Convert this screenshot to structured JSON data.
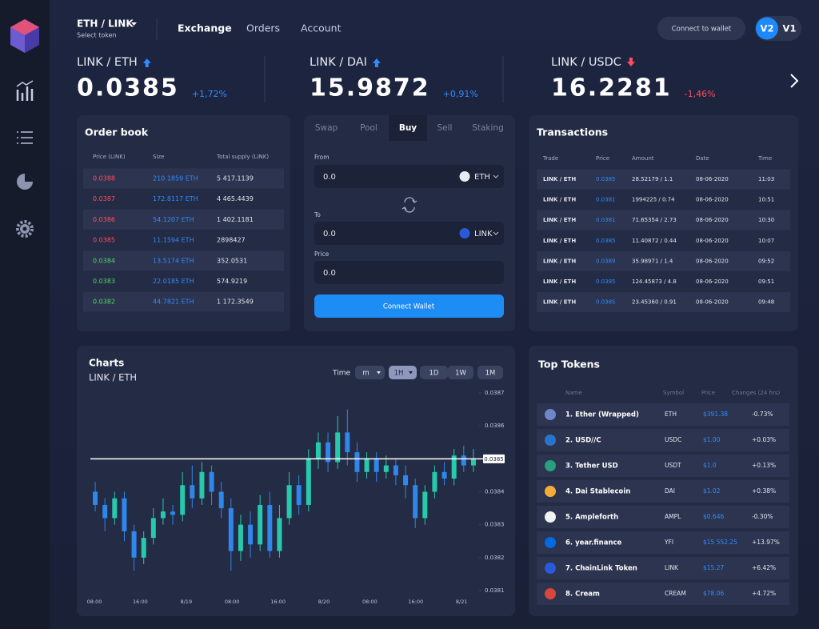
{
  "header": {
    "pair": "ETH / LINK",
    "pair_hint": "Select token",
    "nav": [
      "Exchange",
      "Orders",
      "Account"
    ],
    "active_nav": 0,
    "connect": "Connect to wallet",
    "versions": [
      "V2",
      "V1"
    ],
    "active_version": 0
  },
  "tickers": [
    {
      "pair": "LINK / ETH",
      "price": "0.0385",
      "change": "+1,72%",
      "trend": "up"
    },
    {
      "pair": "LINK / DAI",
      "price": "15.9872",
      "change": "+0,91%",
      "trend": "up"
    },
    {
      "pair": "LINK / USDC",
      "price": "16.2281",
      "change": "-1,46%",
      "trend": "down"
    }
  ],
  "order_book": {
    "title": "Order book",
    "columns": [
      "Price (LINK)",
      "Size",
      "Total supply (LINK)"
    ],
    "rows": [
      [
        "0.0388",
        "210.1859 ETH",
        "5 417.1139"
      ],
      [
        "0.0387",
        "172.8117 ETH",
        "4 465.4439"
      ],
      [
        "0.0386",
        "54.1207 ETH",
        "1 402.1181"
      ],
      [
        "0.0385",
        "11.1594 ETH",
        "2898427"
      ],
      [
        "0.0384",
        "13.5174 ETH",
        "352.0531"
      ],
      [
        "0.0383",
        "22.0185 ETH",
        "574.9219"
      ],
      [
        "0.0382",
        "44.7821 ETH",
        "1 172.3549"
      ]
    ],
    "price_colors": [
      "#ff4d5e",
      "#ff4d5e",
      "#ff4d5e",
      "#ff4d5e",
      "#4cd964",
      "#4cd964",
      "#4cd964"
    ]
  },
  "trade": {
    "tabs": [
      "Swap",
      "Pool",
      "Buy",
      "Sell",
      "Staking"
    ],
    "active_tab": 2,
    "from_label": "From",
    "from_value": "0.0",
    "from_token": "ETH",
    "to_label": "To",
    "to_value": "0.0",
    "to_token": "LINK",
    "price_label": "Price",
    "price_value": "0.0",
    "button": "Connect Wallet"
  },
  "transactions": {
    "title": "Transactions",
    "columns": [
      "Trade",
      "Price",
      "Amount",
      "Date",
      "Time"
    ],
    "rows": [
      [
        "LINK / ETH",
        "0.0385",
        "28.52179 / 1.1",
        "08-06-2020",
        "11:03"
      ],
      [
        "LINK / ETH",
        "0.0381",
        "1994225 / 0.74",
        "08-06-2020",
        "10:51"
      ],
      [
        "LINK / ETH",
        "0.0381",
        "71.65354 / 2.73",
        "08-06-2020",
        "10:30"
      ],
      [
        "LINK / ETH",
        "0.0385",
        "11.40872 / 0.44",
        "08-06-2020",
        "10:07"
      ],
      [
        "LINK / ETH",
        "0.0389",
        "35.98971 / 1.4",
        "08-06-2020",
        "09:52"
      ],
      [
        "LINK / ETH",
        "0.0385",
        "124.45873 / 4.8",
        "08-06-2020",
        "09:51"
      ],
      [
        "LINK / ETH",
        "0.0385",
        "23.45360 / 0.91",
        "08-06-2020",
        "09:48"
      ]
    ]
  },
  "top_tokens": {
    "title": "Top Tokens",
    "columns": [
      "Name",
      "Symbol",
      "Price",
      "Changes (24 hrs)"
    ],
    "rows": [
      {
        "name": "1. Ether (Wrapped)",
        "symbol": "ETH",
        "price": "$391.38",
        "change": "-0.73%",
        "icon_color": "#6f86c9"
      },
      {
        "name": "2. USD//C",
        "symbol": "USDC",
        "price": "$1.00",
        "change": "+0.03%",
        "icon_color": "#2775ca"
      },
      {
        "name": "3. Tether USD",
        "symbol": "USDT",
        "price": "$1.0",
        "change": "+0.13%",
        "icon_color": "#26a17b"
      },
      {
        "name": "4. Dai Stablecoin",
        "symbol": "DAI",
        "price": "$1.02",
        "change": "+0.38%",
        "icon_color": "#f5ac37"
      },
      {
        "name": "5. Ampleforth",
        "symbol": "AMPL",
        "price": "$0.646",
        "change": "-0.30%",
        "icon_color": "#f2f2f2"
      },
      {
        "name": "6. year.finance",
        "symbol": "YFI",
        "price": "$15 552.25",
        "change": "+13.97%",
        "icon_color": "#006ae3"
      },
      {
        "name": "7. ChainLink Token",
        "symbol": "LINK",
        "price": "$15.27",
        "change": "+6.42%",
        "icon_color": "#2a5ada"
      },
      {
        "name": "8. Cream",
        "symbol": "CREAM",
        "price": "$78.06",
        "change": "+4.72%",
        "icon_color": "#d9463c"
      }
    ]
  },
  "chart_data": {
    "type": "candlestick",
    "title": "Charts",
    "subtitle": "LINK / ETH",
    "time_label": "Time",
    "intervals": [
      "m",
      "1H",
      "1D",
      "1W",
      "1M"
    ],
    "active_interval": 1,
    "x_labels": [
      "08:00",
      "16:00",
      "8/19",
      "08:00",
      "16:00",
      "8/20",
      "08:00",
      "16:00",
      "8/21"
    ],
    "open": [
      0.0384,
      0.03836,
      0.03832,
      0.03838,
      0.03828,
      0.0382,
      0.03826,
      0.03832,
      0.03834,
      0.03833,
      0.03842,
      0.03838,
      0.03846,
      0.0384,
      0.03835,
      0.03822,
      0.0383,
      0.03824,
      0.03836,
      0.03822,
      0.03832,
      0.03842,
      0.03836,
      0.0385,
      0.03855,
      0.03849,
      0.03858,
      0.03852,
      0.03846,
      0.0385,
      0.03846,
      0.03848,
      0.03845,
      0.03842,
      0.03832,
      0.0384,
      0.03846,
      0.03844,
      0.03851,
      0.03848
    ],
    "high": [
      0.03843,
      0.03838,
      0.0384,
      0.0384,
      0.0383,
      0.03828,
      0.03835,
      0.03838,
      0.03836,
      0.03846,
      0.03848,
      0.03849,
      0.03848,
      0.03843,
      0.03838,
      0.03833,
      0.03834,
      0.03839,
      0.0384,
      0.03836,
      0.03846,
      0.03845,
      0.03853,
      0.03858,
      0.03858,
      0.03863,
      0.03865,
      0.03855,
      0.03852,
      0.03852,
      0.03851,
      0.0385,
      0.03848,
      0.03844,
      0.03842,
      0.03848,
      0.03849,
      0.03853,
      0.03854,
      0.03853
    ],
    "low": [
      0.03834,
      0.03828,
      0.0383,
      0.03825,
      0.03816,
      0.03818,
      0.03824,
      0.0383,
      0.0383,
      0.03831,
      0.03835,
      0.03836,
      0.03836,
      0.03832,
      0.03816,
      0.03819,
      0.0382,
      0.03822,
      0.0382,
      0.0382,
      0.0383,
      0.03833,
      0.03834,
      0.03847,
      0.03846,
      0.03847,
      0.03848,
      0.03843,
      0.03844,
      0.03843,
      0.03844,
      0.03842,
      0.03838,
      0.03829,
      0.0383,
      0.03838,
      0.03842,
      0.03842,
      0.03846,
      0.03846
    ],
    "close": [
      0.03836,
      0.03832,
      0.03838,
      0.03828,
      0.0382,
      0.03826,
      0.03832,
      0.03834,
      0.03833,
      0.03842,
      0.03838,
      0.03846,
      0.0384,
      0.03835,
      0.03822,
      0.0383,
      0.03824,
      0.03836,
      0.03822,
      0.03832,
      0.03842,
      0.03836,
      0.0385,
      0.03855,
      0.03849,
      0.03858,
      0.03852,
      0.03846,
      0.0385,
      0.03846,
      0.03848,
      0.03845,
      0.03842,
      0.03832,
      0.0384,
      0.03846,
      0.03844,
      0.03851,
      0.03848,
      0.0385
    ],
    "up_color": "#27c9ad",
    "down_color": "#2f86eb",
    "ylim": [
      0.03808,
      0.03872
    ],
    "yticks": [
      0.0381,
      0.0382,
      0.0383,
      0.0384,
      0.0386,
      0.0387
    ],
    "last_price": 0.0385
  }
}
